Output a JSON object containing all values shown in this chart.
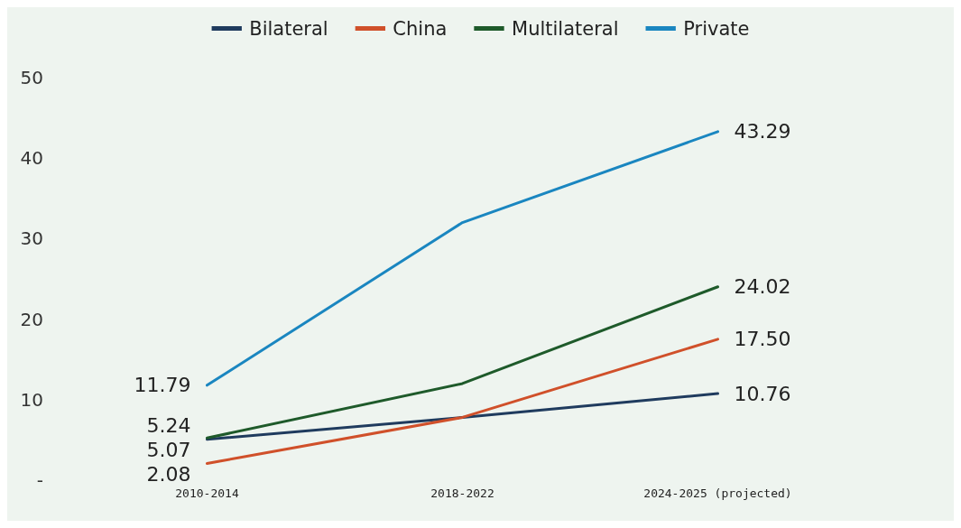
{
  "chart_data": {
    "type": "line",
    "categories": [
      "2010-2014",
      "2018-2022",
      "2024-2025 (projected)"
    ],
    "series": [
      {
        "name": "Bilateral",
        "color": "#1f3b5e",
        "values": [
          5.07,
          7.8,
          10.76
        ],
        "value_labels": [
          "5.07",
          null,
          "10.76"
        ]
      },
      {
        "name": "China",
        "color": "#d0502a",
        "values": [
          2.08,
          7.8,
          17.5
        ],
        "value_labels": [
          "2.08",
          null,
          "17.50"
        ]
      },
      {
        "name": "Multilateral",
        "color": "#1e5a2a",
        "values": [
          5.24,
          12,
          24.02
        ],
        "value_labels": [
          "5.24",
          null,
          "24.02"
        ]
      },
      {
        "name": "Private",
        "color": "#1a86c0",
        "values": [
          11.79,
          32,
          43.29
        ],
        "value_labels": [
          "11.79",
          null,
          "43.29"
        ]
      }
    ],
    "ylim": [
      0,
      50
    ],
    "yticks": [
      {
        "value": 0,
        "label": "-"
      },
      10,
      20,
      30,
      40,
      50
    ],
    "grid": false,
    "legend": "top",
    "marker": "none",
    "line_style": "solid"
  }
}
